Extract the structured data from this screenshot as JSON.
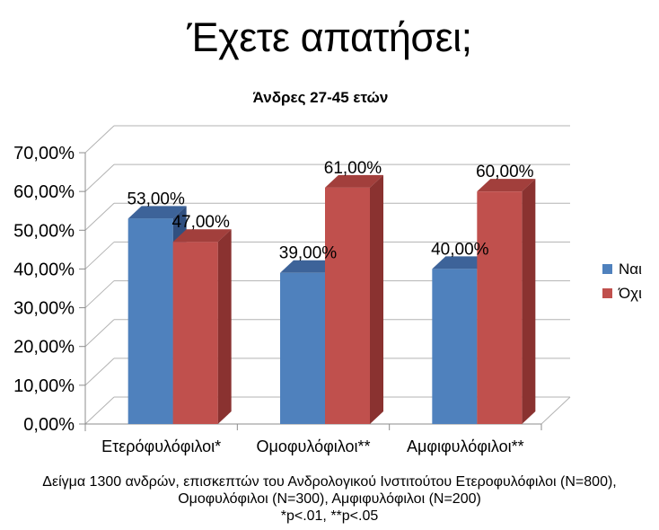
{
  "title": "Έχετε απατήσει;",
  "subtitle": "Άνδρες 27-45 ετών",
  "chart_data": {
    "type": "bar",
    "style": "3d-clustered-column",
    "title": "Έχετε απατήσει;",
    "subtitle": "Άνδρες 27-45 ετών",
    "categories": [
      "Ετερόφυλόφιλοι*",
      "Ομοφυλόφιλοι**",
      "Αμφιφυλόφιλοι**"
    ],
    "series": [
      {
        "key": "yes",
        "name": "Ναι",
        "values": [
          53,
          39,
          40
        ],
        "labels": [
          "53,00%",
          "39,00%",
          "40,00%"
        ],
        "faces": {
          "front": "#4F81BD",
          "top": "#3D6399",
          "side": "#315080"
        }
      },
      {
        "key": "no",
        "name": "Όχι",
        "values": [
          47,
          61,
          60
        ],
        "labels": [
          "47,00%",
          "61,00%",
          "60,00%"
        ],
        "faces": {
          "front": "#C0504D",
          "top": "#A23F3C",
          "side": "#8A3230"
        }
      }
    ],
    "ylim": [
      0,
      70
    ],
    "ytick_step": 10,
    "ytick_labels": [
      "0,00%",
      "10,00%",
      "20,00%",
      "30,00%",
      "40,00%",
      "50,00%",
      "60,00%",
      "70,00%"
    ],
    "xlabel": "",
    "ylabel": "",
    "grid": true,
    "legend_position": "right"
  },
  "legend": {
    "items": [
      {
        "key": "yes",
        "label": "Ναι",
        "color": "#4F81BD"
      },
      {
        "key": "no",
        "label": "Όχι",
        "color": "#C0504D"
      }
    ]
  },
  "footer": {
    "line1": "Δείγμα 1300 ανδρών, επισκεπτών του Ανδρολογικού Ινστιτούτου Ετεροφυλόφιλοι (N=800),",
    "line2": "Ομοφυλόφιλοι (N=300), Αμφιφυλόφιλοι (N=200)",
    "line3": "*p<.01, **p<.05"
  },
  "colors": {
    "background": "#ffffff",
    "text": "#000000",
    "gridline": "#b3b3b3",
    "axis": "#8c8c8c"
  }
}
